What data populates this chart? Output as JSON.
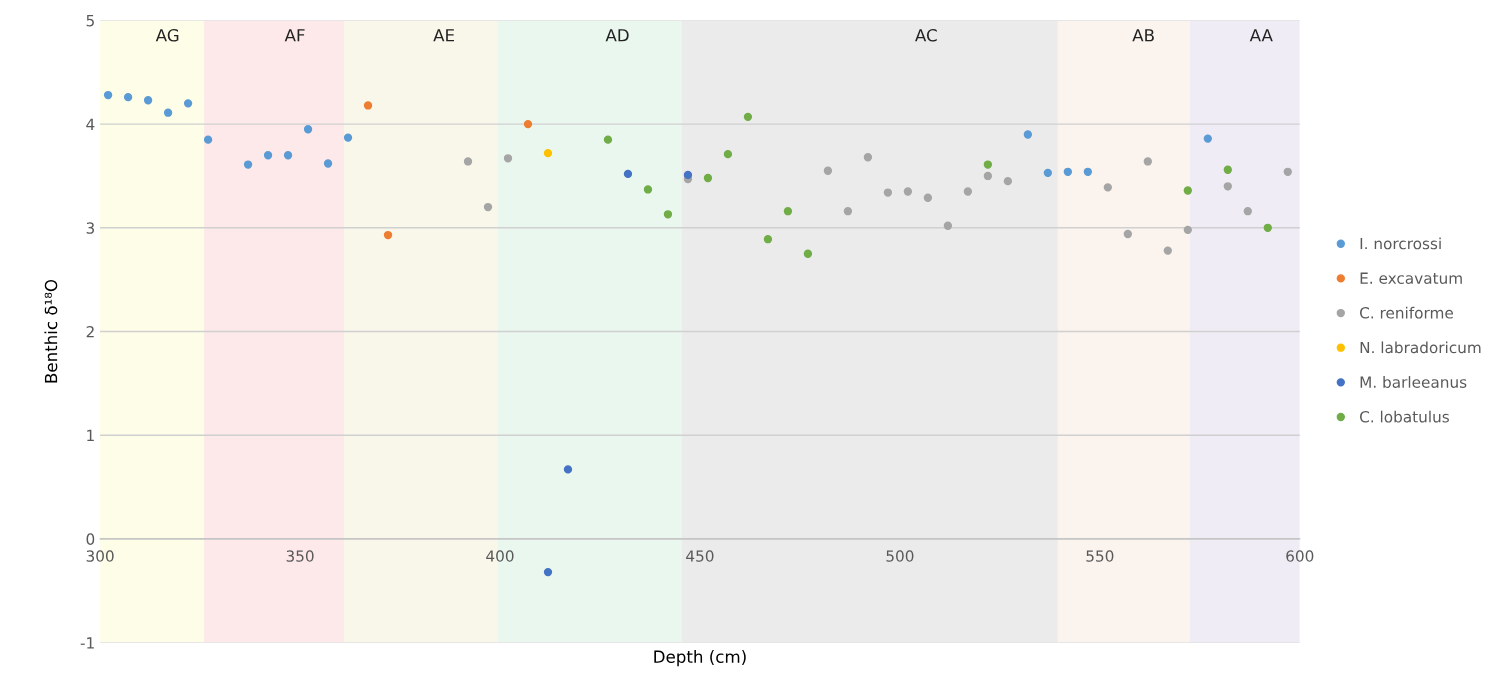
{
  "chart_data": {
    "type": "scatter",
    "xlabel": "Depth (cm)",
    "ylabel": "Benthic δ¹⁸O",
    "xlim": [
      300,
      600
    ],
    "xticks": [
      300,
      350,
      400,
      450,
      500,
      550,
      600
    ],
    "ylim": [
      -1,
      5
    ],
    "yticks": [
      -1,
      0,
      1,
      2,
      3,
      4,
      5
    ],
    "grid": "y",
    "legend": "right",
    "marker": "circle",
    "bands": [
      {
        "axis": "x",
        "from": 300,
        "to": 326,
        "label": "AG",
        "color": "#fefde8"
      },
      {
        "axis": "x",
        "from": 326,
        "to": 361,
        "label": "AF",
        "color": "#fde9ea"
      },
      {
        "axis": "x",
        "from": 361,
        "to": 399.5,
        "label": "AE",
        "color": "#f9f6ea"
      },
      {
        "axis": "x",
        "from": 399.5,
        "to": 445.5,
        "label": "AD",
        "color": "#eaf7ef"
      },
      {
        "axis": "x",
        "from": 445.5,
        "to": 539.5,
        "label": "AC",
        "color": "#ebebeb"
      },
      {
        "axis": "x",
        "from": 539.5,
        "to": 572.5,
        "label": "AB",
        "color": "#fbf3ed"
      },
      {
        "axis": "x",
        "from": 572.5,
        "to": 600,
        "label": "AA",
        "color": "#f0ecf5"
      }
    ],
    "series": [
      {
        "name": "I. norcrossi",
        "color": "#5b9bd5",
        "x": [
          302,
          307,
          312,
          317,
          322,
          327,
          337,
          342,
          347,
          352,
          357,
          362,
          532,
          537,
          542,
          547,
          577
        ],
        "values": [
          4.28,
          4.26,
          4.23,
          4.11,
          4.2,
          3.85,
          3.61,
          3.7,
          3.7,
          3.95,
          3.62,
          3.87,
          3.9,
          3.53,
          3.54,
          3.54,
          3.86
        ]
      },
      {
        "name": "E. excavatum",
        "color": "#ed7d31",
        "x": [
          367,
          372,
          407
        ],
        "values": [
          4.18,
          2.93,
          4.0
        ]
      },
      {
        "name": "C. reniforme",
        "color": "#a5a5a5",
        "x": [
          392,
          397,
          402,
          447,
          482,
          487,
          492,
          497,
          502,
          507,
          512,
          517,
          522,
          527,
          552,
          557,
          562,
          567,
          572,
          582,
          587,
          597
        ],
        "values": [
          3.64,
          3.2,
          3.67,
          3.47,
          3.55,
          3.16,
          3.68,
          3.34,
          3.35,
          3.29,
          3.02,
          3.35,
          3.5,
          3.45,
          3.39,
          2.94,
          3.64,
          2.78,
          2.98,
          3.4,
          3.16,
          3.54
        ]
      },
      {
        "name": "N. labradoricum",
        "color": "#ffc000",
        "x": [
          412
        ],
        "values": [
          3.72
        ]
      },
      {
        "name": "M. barleeanus",
        "color": "#4472c4",
        "x": [
          412,
          417,
          432,
          447
        ],
        "values": [
          -0.32,
          0.67,
          3.52,
          3.51
        ]
      },
      {
        "name": "C. lobatulus",
        "color": "#70ad47",
        "x": [
          427,
          437,
          442,
          452,
          457,
          462,
          467,
          472,
          477,
          522,
          572,
          582,
          592
        ],
        "values": [
          3.85,
          3.37,
          3.13,
          3.48,
          3.71,
          4.07,
          2.89,
          3.16,
          2.75,
          3.61,
          3.36,
          3.56,
          3.0
        ]
      }
    ]
  }
}
